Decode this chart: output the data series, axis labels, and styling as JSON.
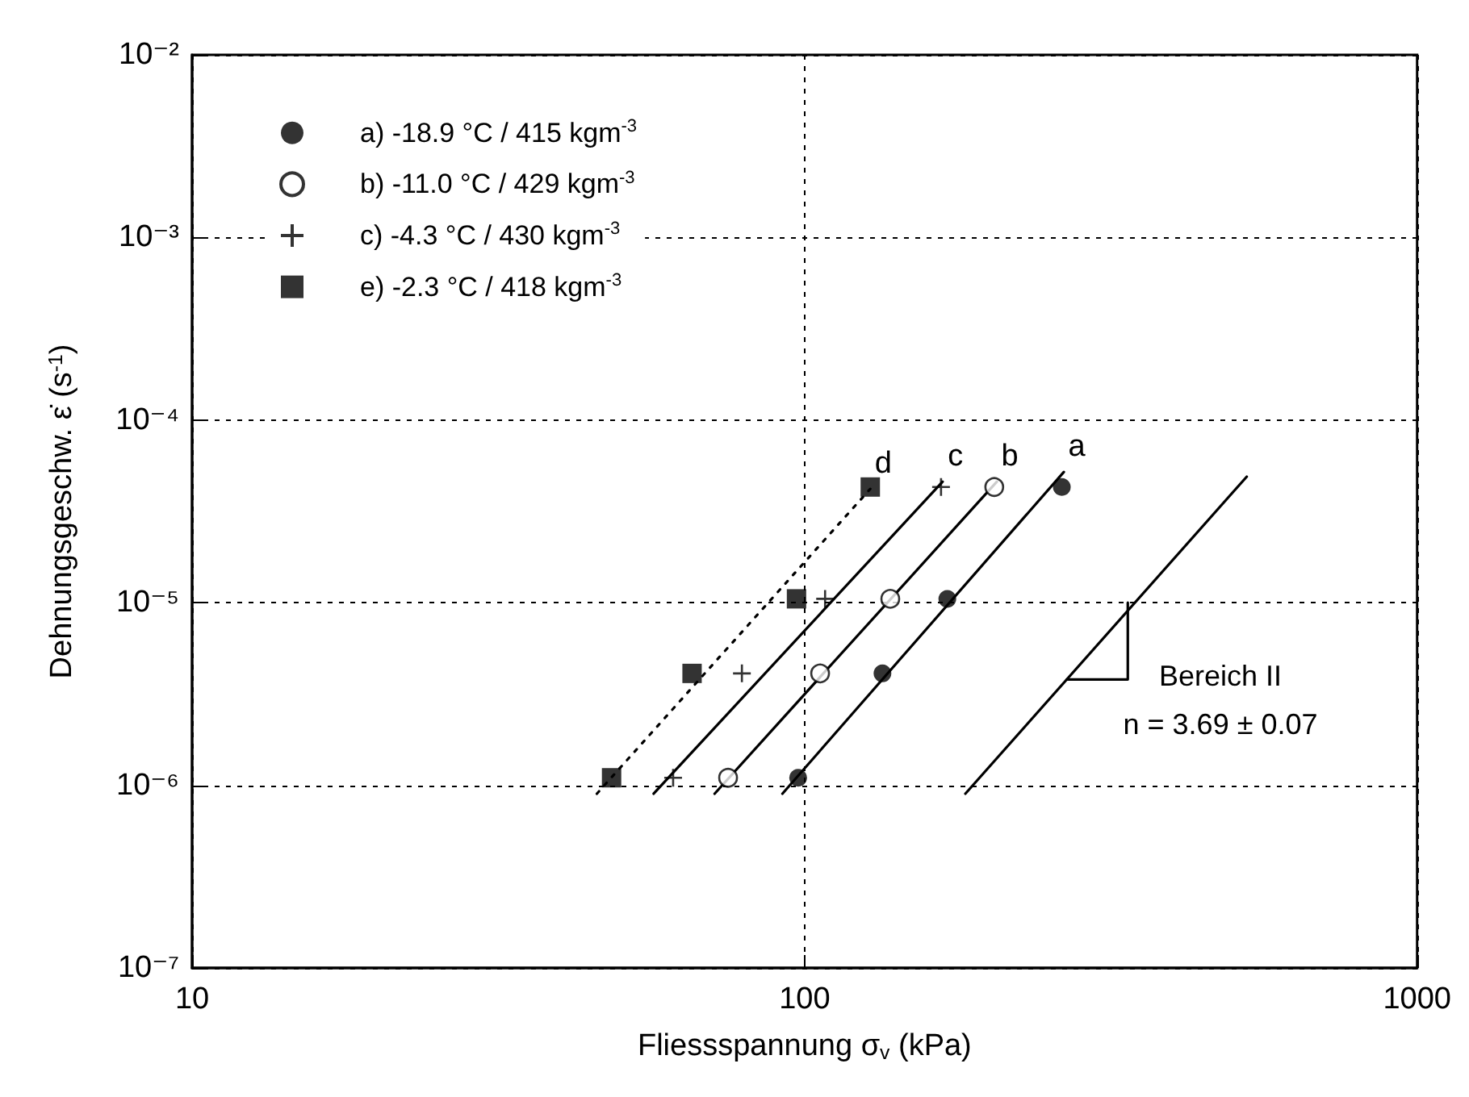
{
  "chart_data": {
    "type": "scatter",
    "xlabel": "Fliessspannung σ$_{v}$ (kPa)",
    "ylabel": "Dehnungsgeschw. ε̇ (s$^{-1}$)",
    "log": "xy",
    "xlim": [
      10,
      1000
    ],
    "ylim": [
      1e-07,
      0.01
    ],
    "xticks": [
      10,
      100,
      1000
    ],
    "yticks": [
      {
        "value": 1e-07,
        "label": "10⁻⁷"
      },
      {
        "value": 1e-06,
        "label": "10⁻⁶"
      },
      {
        "value": 1e-05,
        "label": "10⁻⁵"
      },
      {
        "value": 0.0001,
        "label": "10⁻⁴"
      },
      {
        "value": 0.001,
        "label": "10⁻³"
      },
      {
        "value": 0.01,
        "label": "10⁻²"
      }
    ],
    "grid": true,
    "legend": "top left",
    "series": [
      {
        "name": "a) -18.9 °C / 415 kgm$^{-3}$",
        "color": "#000000",
        "marker": "circle",
        "x": [
          97.6,
          134,
          171,
          263
        ],
        "values": [
          1.1e-06,
          4.1e-06,
          1.05e-05,
          4.3e-05
        ]
      },
      {
        "name": "b) -11.0 °C / 429 kgm$^{-3}$",
        "color": "#000000",
        "marker": "open circle",
        "x": [
          75,
          106,
          138,
          204
        ],
        "values": [
          1.1e-06,
          4.1e-06,
          1.05e-05,
          4.3e-05
        ]
      },
      {
        "name": "c) -4.3 °C / 430 kgm$^{-3}$",
        "color": "#000000",
        "marker": "cross",
        "x": [
          61,
          79,
          108,
          167
        ],
        "values": [
          1.1e-06,
          4.1e-06,
          1.05e-05,
          4.3e-05
        ]
      },
      {
        "name": "e) -2.3 °C / 418 kgm$^{-3}$",
        "color": "#000000",
        "marker": "square",
        "x": [
          48.4,
          65.5,
          97,
          128
        ],
        "values": [
          1.1e-06,
          4.1e-06,
          1.05e-05,
          4.3e-05
        ]
      },
      {
        "name": "a",
        "type": "line",
        "color": "#000000",
        "line_style": "solid",
        "marker": "none",
        "x": [
          92,
          265
        ],
        "values": [
          9e-07,
          5.2e-05
        ]
      },
      {
        "name": "b",
        "type": "line",
        "color": "#000000",
        "line_style": "solid",
        "marker": "none",
        "x": [
          71.3,
          206
        ],
        "values": [
          9e-07,
          4.6e-05
        ]
      },
      {
        "name": "c",
        "type": "line",
        "color": "#000000",
        "line_style": "solid",
        "marker": "none",
        "x": [
          56.7,
          168
        ],
        "values": [
          9e-07,
          4.6e-05
        ]
      },
      {
        "name": "d",
        "type": "line",
        "color": "#000000",
        "line_style": "dotted",
        "marker": "none",
        "x": [
          45.8,
          128
        ],
        "values": [
          9e-07,
          4.2e-05
        ]
      },
      {
        "type": "line",
        "color": "#000000",
        "line_style": "solid",
        "marker": "none",
        "x": [
          183,
          527
        ],
        "values": [
          9e-07,
          4.9e-05
        ]
      },
      {
        "type": "line",
        "color": "#000000",
        "line_style": "solid",
        "marker": "none",
        "x": [
          337,
          337,
          268
        ],
        "values": [
          1e-05,
          3.8e-06,
          3.8e-06
        ]
      }
    ],
    "annotations": [
      "Bereich II",
      "n = 3.69 ± 0.07"
    ]
  }
}
